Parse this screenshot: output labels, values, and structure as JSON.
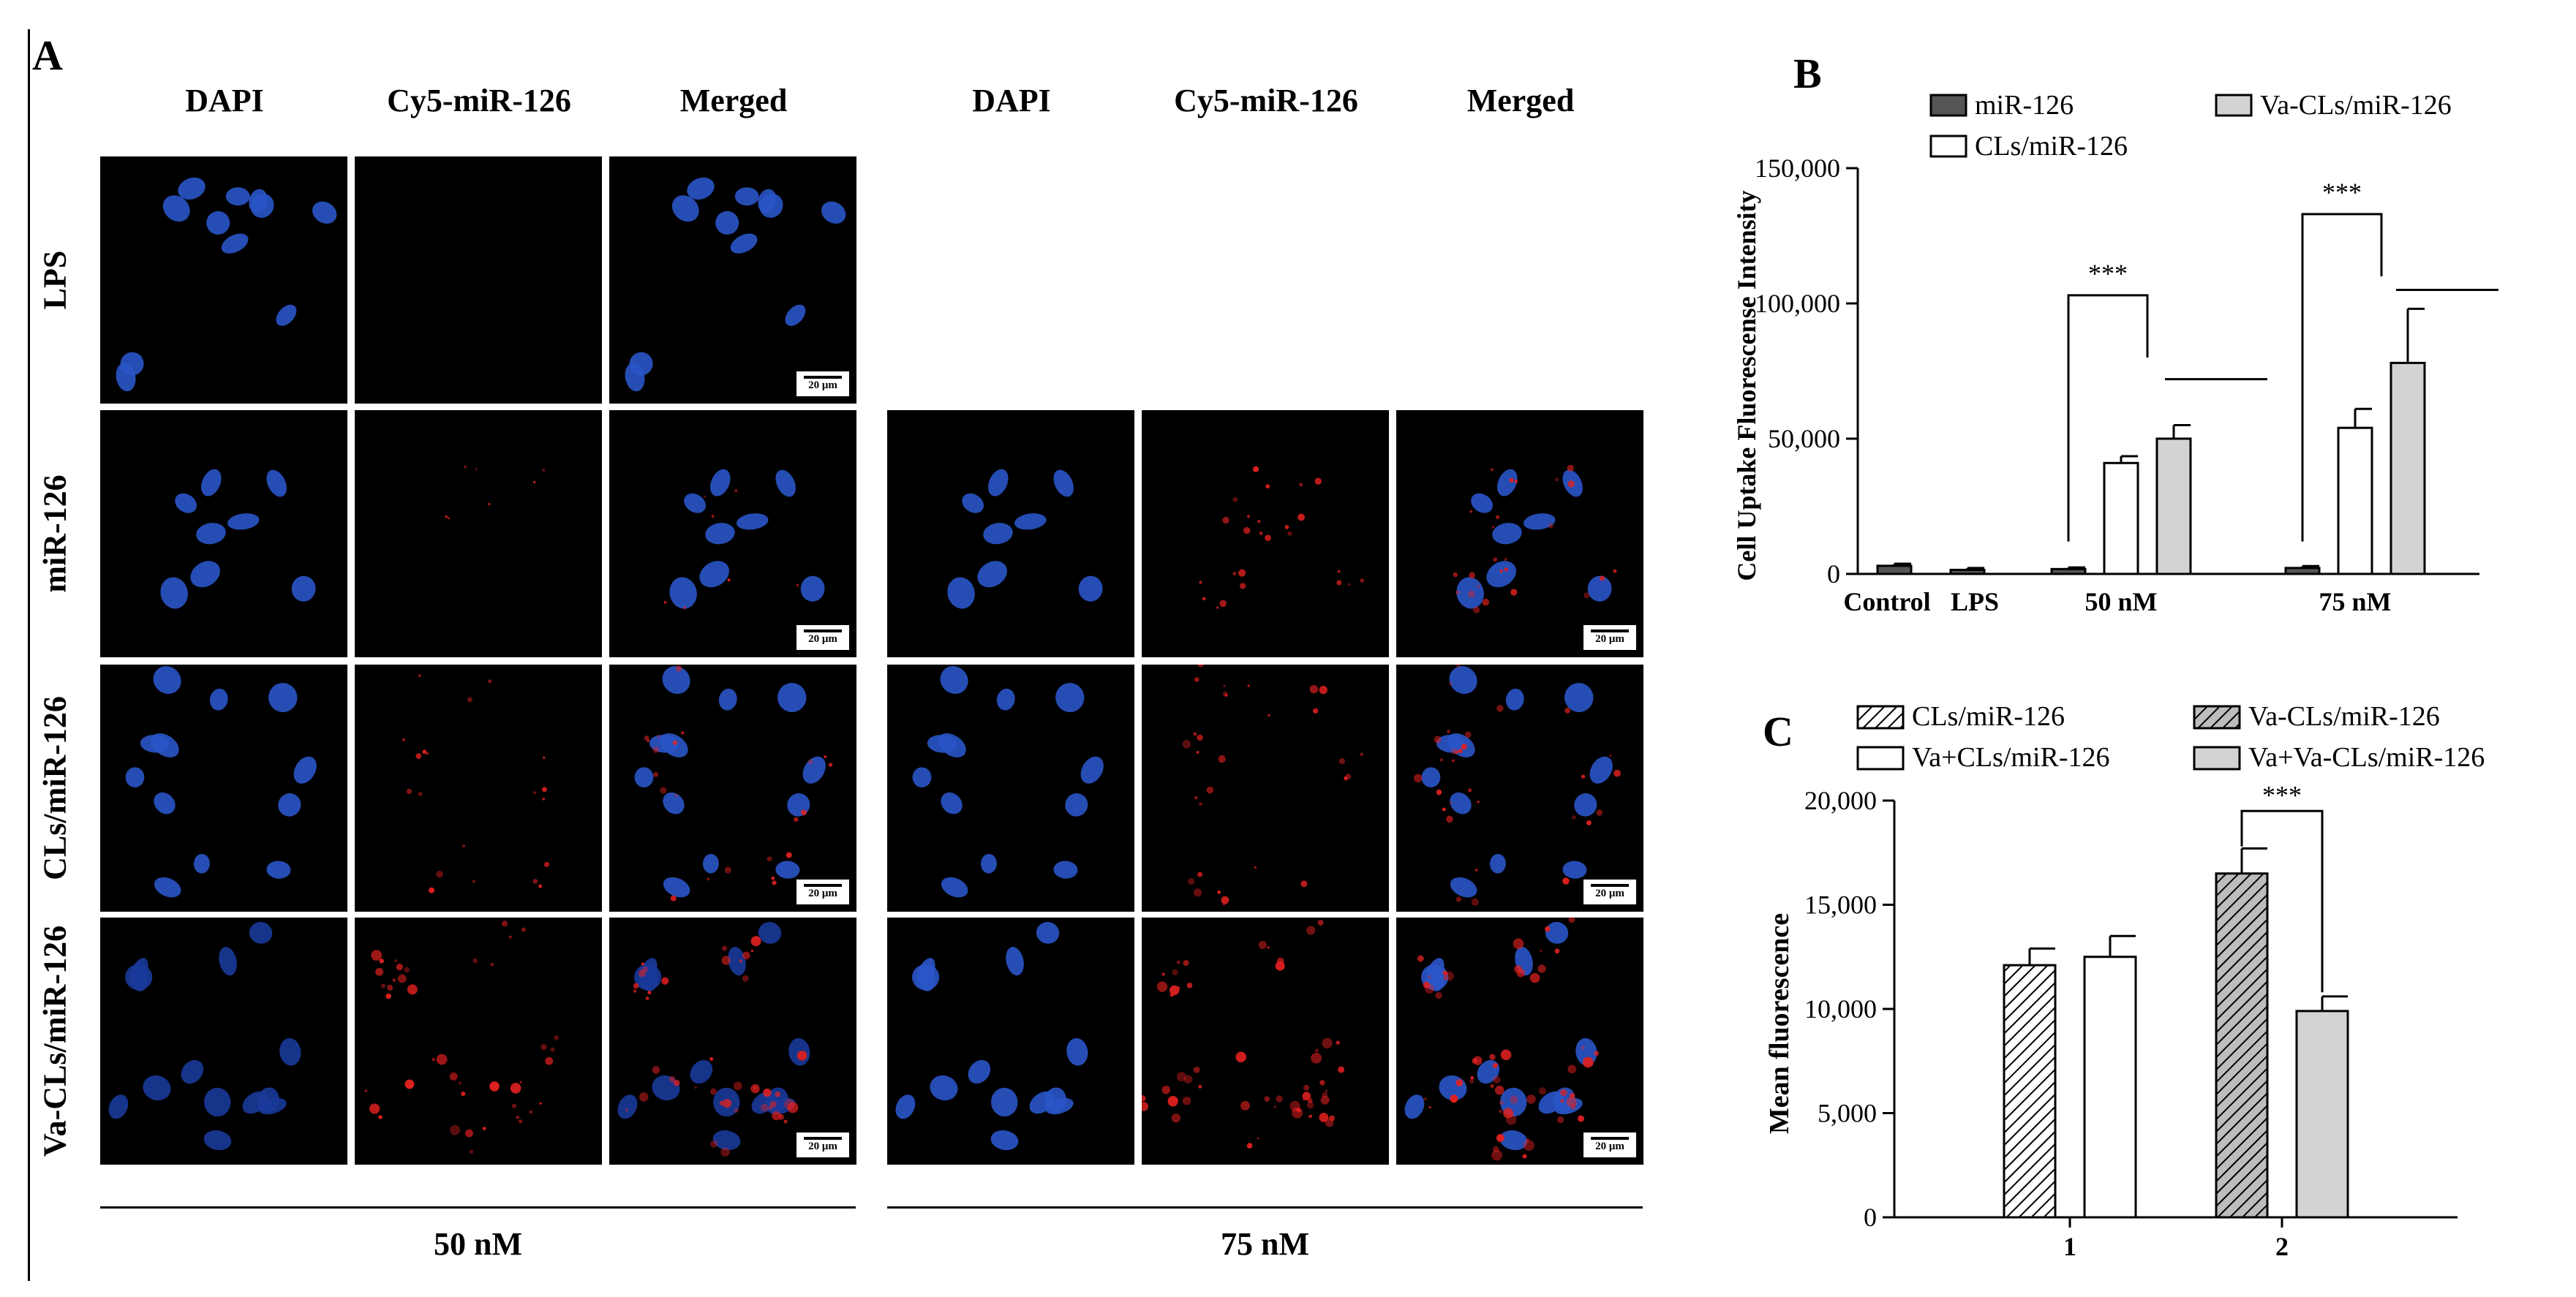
{
  "panel_a": {
    "letter": "A",
    "column_headers": [
      "DAPI",
      "Cy5-miR-126",
      "Merged",
      "DAPI",
      "Cy5-miR-126",
      "Merged"
    ],
    "row_labels": [
      "LPS",
      "miR-126",
      "CLs/miR-126",
      "Va-CLs/miR-126"
    ],
    "scale_bar": "20 μm",
    "group_labels": [
      "50 nM",
      "75 nM"
    ]
  },
  "chart_data": [
    {
      "panel": "B",
      "type": "bar",
      "ylabel": "Cell Uptake Fluorescense Intensity",
      "xlabel": "",
      "categories": [
        "Control",
        "LPS",
        "50 nM",
        "75 nM"
      ],
      "ylim": [
        0,
        150000
      ],
      "yticks": [
        "0",
        "50,000",
        "100,000",
        "150,000"
      ],
      "series": [
        {
          "name": "miR-126",
          "color": "#555555",
          "values": [
            3000,
            1500,
            1800,
            2200
          ],
          "errors": [
            800,
            700,
            600,
            700
          ]
        },
        {
          "name": "CLs/miR-126",
          "color": "#ffffff",
          "values": [
            null,
            null,
            41000,
            54000
          ],
          "errors": [
            null,
            null,
            2500,
            7000
          ]
        },
        {
          "name": "Va-CLs/miR-126",
          "color": "#d3d3d3",
          "values": [
            null,
            null,
            50000,
            78000
          ],
          "errors": [
            null,
            null,
            5000,
            20000
          ]
        }
      ],
      "significance": [
        "***",
        "***"
      ],
      "legend": "top"
    },
    {
      "panel": "C",
      "type": "bar",
      "ylabel": "Mean fluorescence",
      "xlabel": "",
      "categories": [
        "1",
        "2"
      ],
      "ylim": [
        0,
        20000
      ],
      "yticks": [
        "0",
        "5,000",
        "10,000",
        "15,000",
        "20,000"
      ],
      "series": [
        {
          "name": "CLs/miR-126",
          "pattern": "hatch-white",
          "group": 1,
          "value": 12100,
          "error": 800
        },
        {
          "name": "Va+CLs/miR-126",
          "pattern": "white",
          "group": 1,
          "value": 12500,
          "error": 1000
        },
        {
          "name": "Va-CLs/miR-126",
          "pattern": "hatch-grey",
          "group": 2,
          "value": 16500,
          "error": 1200
        },
        {
          "name": "Va+Va-CLs/miR-126",
          "pattern": "grey",
          "group": 2,
          "value": 9900,
          "error": 700
        }
      ],
      "significance": [
        "***"
      ],
      "legend": "top"
    }
  ]
}
